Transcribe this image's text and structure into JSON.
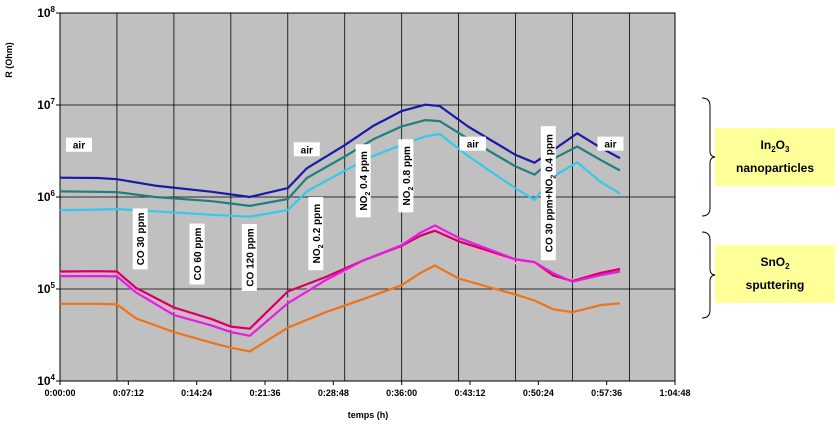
{
  "chart_data": {
    "type": "line",
    "title": "",
    "xlabel": "temps (h)",
    "ylabel": "R (Ohm)",
    "y_scale": "log",
    "ylim": [
      10000,
      100000000
    ],
    "xlim": [
      "0:00:00",
      "1:04:48"
    ],
    "x_ticks": [
      "0:00:00",
      "0:07:12",
      "0:14:24",
      "0:21:36",
      "0:28:48",
      "0:36:00",
      "0:43:12",
      "0:50:24",
      "0:57:36",
      "1:04:48"
    ],
    "y_ticks": [
      {
        "value": 10000,
        "base": "10",
        "exp": "4"
      },
      {
        "value": 100000,
        "base": "10",
        "exp": "5"
      },
      {
        "value": 1000000,
        "base": "10",
        "exp": "6"
      },
      {
        "value": 10000000,
        "base": "10",
        "exp": "7"
      },
      {
        "value": 100000000,
        "base": "10",
        "exp": "8"
      }
    ],
    "grid": "horizontal at decades; vertical lines at gas switching times",
    "background": "#c0c0c0",
    "event_lines": [
      "0:06:00",
      "0:12:00",
      "0:18:00",
      "0:24:00",
      "0:30:00",
      "0:36:00",
      "0:42:00",
      "0:48:00",
      "0:54:00",
      "1:00:00"
    ],
    "series": [
      {
        "color": "#1a1aa6",
        "x": [
          "0:00:00",
          "0:04:00",
          "0:06:00",
          "0:10:00",
          "0:16:00",
          "0:20:00",
          "0:24:00",
          "0:26:00",
          "0:30:00",
          "0:33:00",
          "0:36:00",
          "0:38:30",
          "0:40:00",
          "0:43:00",
          "0:48:00",
          "0:50:00",
          "0:52:00",
          "0:54:30",
          "0:57:00",
          "0:59:00"
        ],
        "values": [
          1620000,
          1610000,
          1560000,
          1330000,
          1140000,
          1000000,
          1250000,
          2050000,
          3660000,
          5920000,
          8600000,
          10080000,
          9750000,
          5840000,
          2870000,
          2360000,
          3250000,
          4930000,
          3420000,
          2640000
        ]
      },
      {
        "color": "#1f7f7f",
        "x": [
          "0:00:00",
          "0:04:00",
          "0:06:00",
          "0:10:00",
          "0:16:00",
          "0:20:00",
          "0:24:00",
          "0:26:00",
          "0:30:00",
          "0:33:00",
          "0:36:00",
          "0:38:30",
          "0:40:00",
          "0:43:00",
          "0:48:00",
          "0:50:00",
          "0:52:00",
          "0:54:30",
          "0:57:00",
          "0:59:00"
        ],
        "values": [
          1150000,
          1140000,
          1130000,
          1000000,
          900000,
          800000,
          950000,
          1610000,
          2750000,
          4240000,
          5850000,
          6850000,
          6680000,
          4300000,
          2150000,
          1750000,
          2610000,
          3540000,
          2510000,
          1940000
        ]
      },
      {
        "color": "#33c9ee",
        "x": [
          "0:00:00",
          "0:04:00",
          "0:06:00",
          "0:10:00",
          "0:16:00",
          "0:20:00",
          "0:24:00",
          "0:26:00",
          "0:30:00",
          "0:33:00",
          "0:36:00",
          "0:38:30",
          "0:40:00",
          "0:43:00",
          "0:48:00",
          "0:50:00",
          "0:52:00",
          "0:54:30",
          "0:57:00",
          "0:59:00"
        ],
        "values": [
          720000,
          730000,
          740000,
          700000,
          640000,
          610000,
          720000,
          1150000,
          1930000,
          2790000,
          3680000,
          4560000,
          4840000,
          2790000,
          1240000,
          930000,
          1680000,
          2380000,
          1450000,
          1090000
        ]
      },
      {
        "color": "#e8a8d4",
        "x": [
          "0:00:00",
          "0:04:00",
          "0:06:00",
          "0:08:00",
          "0:12:00",
          "0:16:00",
          "0:18:00",
          "0:20:00",
          "0:24:00",
          "0:28:00",
          "0:32:00",
          "0:36:00",
          "0:38:00",
          "0:39:30",
          "0:42:00",
          "0:48:00",
          "0:50:00",
          "0:52:00",
          "0:54:00",
          "0:57:00",
          "0:59:00"
        ],
        "values": [
          150000,
          150000,
          148000,
          95000,
          58000,
          44000,
          37000,
          36000,
          78000,
          120000,
          200000,
          310000,
          420000,
          470000,
          330000,
          190000,
          190000,
          140000,
          125000,
          155000,
          168000
        ]
      },
      {
        "color": "#d40060",
        "x": [
          "0:00:00",
          "0:04:00",
          "0:06:00",
          "0:08:00",
          "0:12:00",
          "0:16:00",
          "0:18:00",
          "0:20:00",
          "0:24:00",
          "0:28:00",
          "0:32:00",
          "0:36:00",
          "0:38:00",
          "0:39:30",
          "0:42:00",
          "0:48:00",
          "0:50:00",
          "0:52:00",
          "0:54:00",
          "0:57:00",
          "0:59:00"
        ],
        "values": [
          155000,
          156000,
          155000,
          103000,
          63000,
          47000,
          39000,
          37000,
          94000,
          135000,
          205000,
          295000,
          380000,
          430000,
          330000,
          210000,
          196000,
          140000,
          122000,
          150000,
          165000
        ]
      },
      {
        "color": "#e020e0",
        "x": [
          "0:00:00",
          "0:04:00",
          "0:06:00",
          "0:08:00",
          "0:12:00",
          "0:16:00",
          "0:18:00",
          "0:20:00",
          "0:24:00",
          "0:28:00",
          "0:32:00",
          "0:36:00",
          "0:38:00",
          "0:39:30",
          "0:42:00",
          "0:48:00",
          "0:50:00",
          "0:52:00",
          "0:54:00",
          "0:57:00",
          "0:59:00"
        ],
        "values": [
          138000,
          138000,
          137000,
          92000,
          52000,
          40000,
          34000,
          31000,
          70000,
          125000,
          205000,
          300000,
          410000,
          490000,
          360000,
          210000,
          196000,
          148000,
          120000,
          142000,
          155000
        ]
      },
      {
        "color": "#ef7318",
        "x": [
          "0:00:00",
          "0:04:00",
          "0:06:00",
          "0:08:00",
          "0:12:00",
          "0:16:00",
          "0:18:00",
          "0:20:00",
          "0:24:00",
          "0:28:00",
          "0:32:00",
          "0:36:00",
          "0:38:00",
          "0:39:30",
          "0:42:00",
          "0:48:00",
          "0:50:00",
          "0:52:00",
          "0:54:00",
          "0:57:00",
          "0:59:00"
        ],
        "values": [
          69000,
          69000,
          68000,
          48000,
          34000,
          26000,
          23000,
          21000,
          38000,
          56000,
          78000,
          110000,
          150000,
          180000,
          130000,
          87000,
          75000,
          60000,
          56000,
          67000,
          70000
        ]
      }
    ],
    "annotations": [
      {
        "text": "air",
        "t": "0:02:00",
        "value": 3700000,
        "orient": "h"
      },
      {
        "text": "air",
        "t": "0:26:00",
        "value": 3300000,
        "orient": "h"
      },
      {
        "text": "air",
        "t": "0:43:30",
        "value": 3800000,
        "orient": "h"
      },
      {
        "text": "air",
        "t": "0:58:00",
        "value": 3800000,
        "orient": "h"
      },
      {
        "text": "CO 30 ppm",
        "t": "0:08:30",
        "value": 350000,
        "orient": "v"
      },
      {
        "text": "CO 60 ppm",
        "t": "0:14:30",
        "value": 240000,
        "orient": "v"
      },
      {
        "text": "CO 120 ppm",
        "t": "0:20:00",
        "value": 220000,
        "orient": "v"
      },
      {
        "text": "NO",
        "sub": "2",
        "tail": " 0.2 ppm",
        "t": "0:27:00",
        "value": 400000,
        "orient": "v"
      },
      {
        "text": "NO",
        "sub": "2",
        "tail": " 0.4 ppm",
        "t": "0:32:00",
        "value": 1500000,
        "orient": "v"
      },
      {
        "text": "NO",
        "sub": "2",
        "tail": " 0.8 ppm",
        "t": "0:36:30",
        "value": 1700000,
        "orient": "v"
      },
      {
        "text": "CO 30 ppm+NO",
        "sub": "2",
        "tail": " 0.4 ppm",
        "t": "0:51:30",
        "value": 1100000,
        "orient": "v"
      }
    ],
    "legend": [
      {
        "line1": "In",
        "sub1": "2",
        "mid1": "O",
        "sub2": "3",
        "line2": "nanoparticles"
      },
      {
        "line1": "SnO",
        "sub1": "2",
        "mid1": "",
        "sub2": "",
        "line2": "sputtering"
      }
    ]
  }
}
